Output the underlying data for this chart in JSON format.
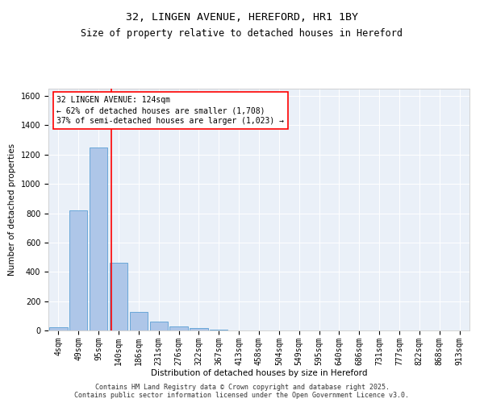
{
  "title1": "32, LINGEN AVENUE, HEREFORD, HR1 1BY",
  "title2": "Size of property relative to detached houses in Hereford",
  "xlabel": "Distribution of detached houses by size in Hereford",
  "ylabel": "Number of detached properties",
  "bar_labels": [
    "4sqm",
    "49sqm",
    "95sqm",
    "140sqm",
    "186sqm",
    "231sqm",
    "276sqm",
    "322sqm",
    "367sqm",
    "413sqm",
    "458sqm",
    "504sqm",
    "549sqm",
    "595sqm",
    "640sqm",
    "686sqm",
    "731sqm",
    "777sqm",
    "822sqm",
    "868sqm",
    "913sqm"
  ],
  "bar_values": [
    22,
    820,
    1248,
    462,
    128,
    58,
    25,
    18,
    8,
    0,
    0,
    0,
    0,
    0,
    0,
    0,
    0,
    0,
    0,
    0,
    0
  ],
  "bar_color": "#aec6e8",
  "bar_edgecolor": "#5a9fd4",
  "vline_x": 2.62,
  "vline_color": "red",
  "annotation_text": "32 LINGEN AVENUE: 124sqm\n← 62% of detached houses are smaller (1,708)\n37% of semi-detached houses are larger (1,023) →",
  "ylim": [
    0,
    1650
  ],
  "yticks": [
    0,
    200,
    400,
    600,
    800,
    1000,
    1200,
    1400,
    1600
  ],
  "bg_color": "#eaf0f8",
  "footer": "Contains HM Land Registry data © Crown copyright and database right 2025.\nContains public sector information licensed under the Open Government Licence v3.0.",
  "title_fontsize": 9.5,
  "subtitle_fontsize": 8.5,
  "axis_label_fontsize": 7.5,
  "tick_fontsize": 7,
  "ann_fontsize": 7,
  "footer_fontsize": 6
}
